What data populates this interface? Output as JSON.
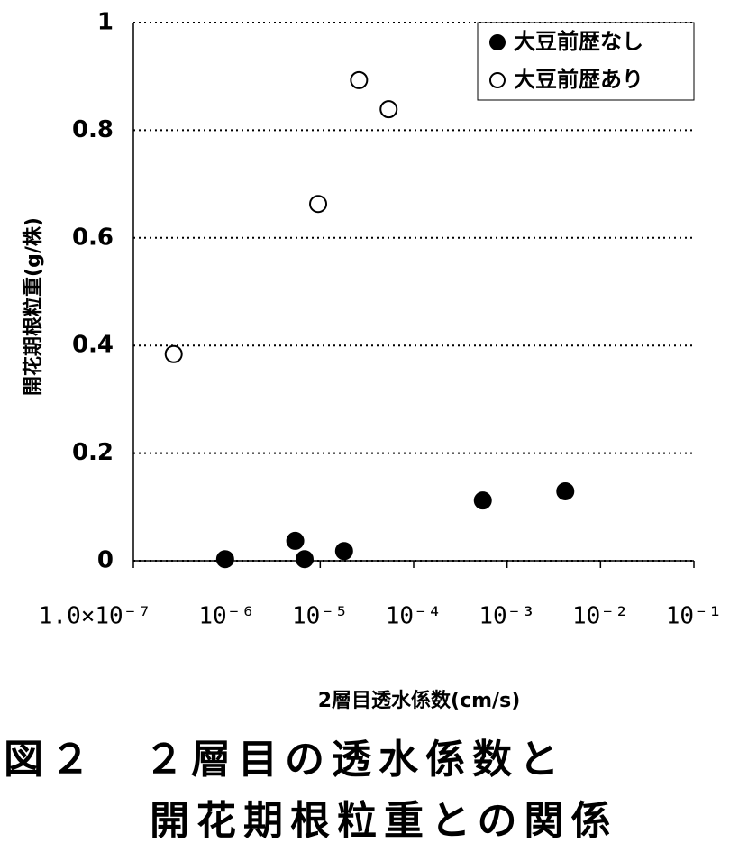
{
  "chart_data": {
    "type": "scatter",
    "xlabel": "2層目透水係数(cm/s)",
    "ylabel": "開花期根粒重(g/株)",
    "xscale": "log",
    "xlim": [
      1e-07,
      0.1
    ],
    "xticks": [
      {
        "value": 1e-07,
        "label": "1.0×10⁻⁷"
      },
      {
        "value": 1e-06,
        "label": "10⁻⁶"
      },
      {
        "value": 1e-05,
        "label": "10⁻⁵"
      },
      {
        "value": 0.0001,
        "label": "10⁻⁴"
      },
      {
        "value": 0.001,
        "label": "10⁻³"
      },
      {
        "value": 0.01,
        "label": "10⁻²"
      },
      {
        "value": 0.1,
        "label": "10⁻¹"
      }
    ],
    "ylim": [
      0,
      1
    ],
    "yticks": [
      0,
      0.2,
      0.4,
      0.6,
      0.8,
      1
    ],
    "grid": true,
    "legend": "upper right",
    "series": [
      {
        "name": "大豆前歴なし",
        "color": "#000000",
        "filled": true,
        "x": [
          9.6e-07,
          5.4e-06,
          6.8e-06,
          1.8e-05,
          0.00055,
          0.0042
        ],
        "values": [
          0.003,
          0.037,
          0.003,
          0.018,
          0.112,
          0.129
        ]
      },
      {
        "name": "大豆前歴あり",
        "color": "#000000",
        "filled": false,
        "x": [
          2.7e-07,
          9.5e-06,
          2.6e-05,
          5.4e-05
        ],
        "values": [
          0.384,
          0.663,
          0.893,
          0.839
        ]
      }
    ]
  },
  "caption": [
    "図２　２層目の透水係数と",
    "開花期根粒重との関係"
  ]
}
